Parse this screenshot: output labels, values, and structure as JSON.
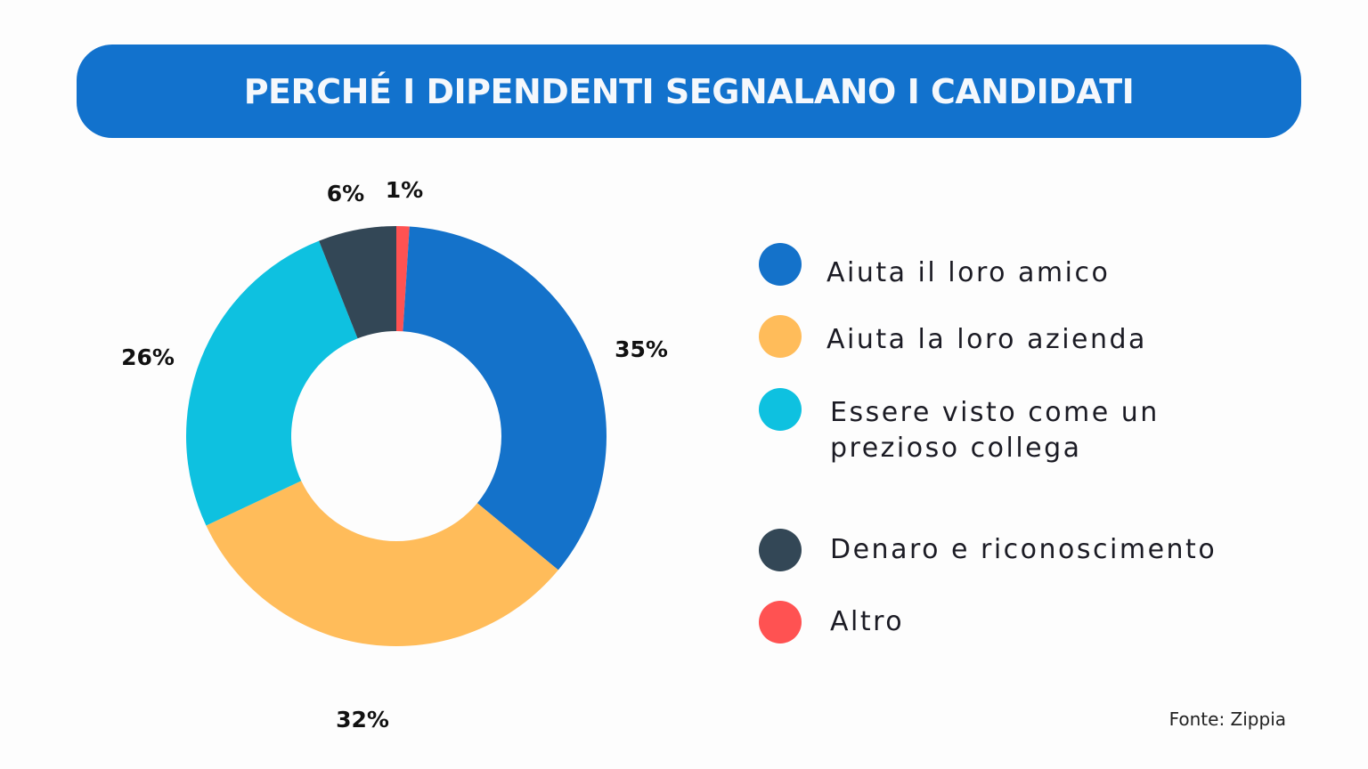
{
  "header": {
    "title": "PERCHÉ I DIPENDENTI SEGNALANO I CANDIDATI"
  },
  "chart_data": {
    "type": "pie",
    "donut": true,
    "start": "top, clockwise",
    "categories": [
      "Altro",
      "Aiuta il loro amico",
      "Aiuta la loro azienda",
      "Essere visto come un prezioso collega",
      "Denaro e riconoscimento"
    ],
    "values": [
      1,
      35,
      32,
      26,
      6
    ],
    "labels": [
      "1%",
      "35%",
      "32%",
      "26%",
      "6%"
    ],
    "colors": [
      "#ff5252",
      "#1472ca",
      "#ffbc5a",
      "#0ec1e0",
      "#334756"
    ],
    "legend_placement": "right"
  },
  "legend": [
    {
      "label": "Aiuta il loro amico",
      "color": "#1472ca"
    },
    {
      "label": "Aiuta la loro azienda",
      "color": "#ffbc5a"
    },
    {
      "label": "Essere visto come un prezioso collega",
      "color": "#0ec1e0"
    },
    {
      "label": "Denaro e riconoscimento",
      "color": "#334756"
    },
    {
      "label": "Altro",
      "color": "#ff5252"
    }
  ],
  "source": "Fonte: Zippia"
}
